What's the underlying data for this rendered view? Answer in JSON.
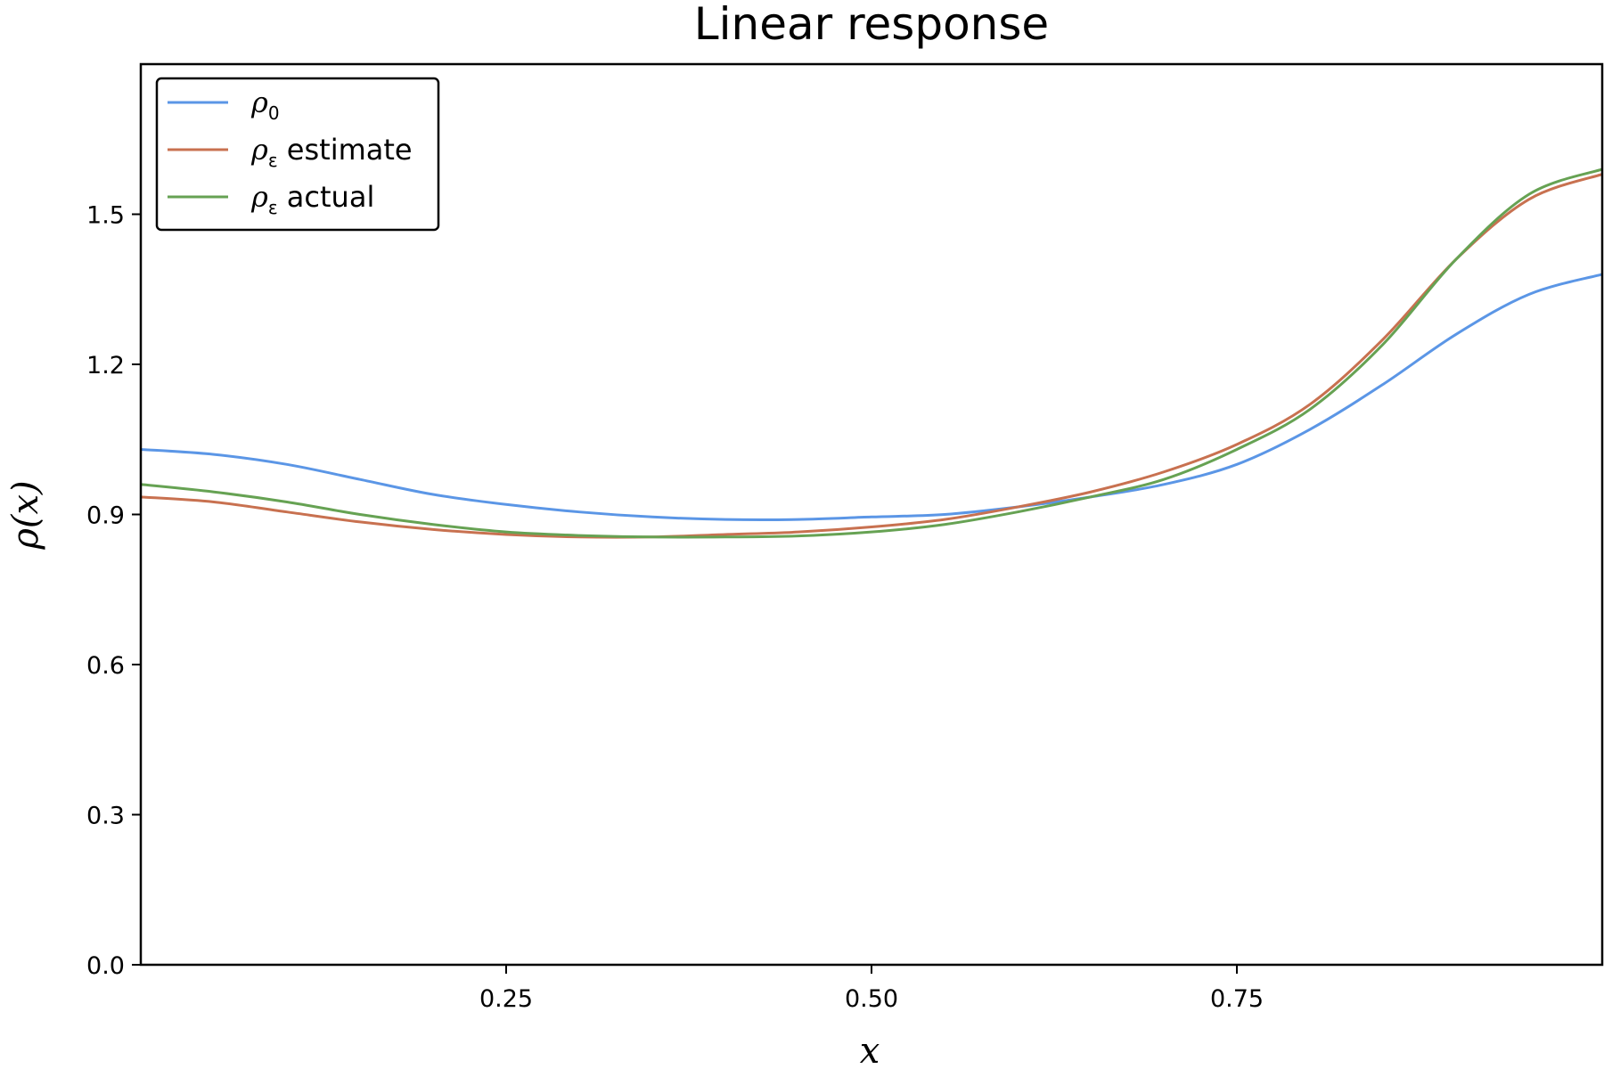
{
  "chart_data": {
    "type": "line",
    "title": "Linear response",
    "xlabel": "x",
    "ylabel": "ρ(x)",
    "xlim": [
      0.0,
      1.0
    ],
    "ylim": [
      0.0,
      1.8
    ],
    "xticks": [
      0.25,
      0.5,
      0.75
    ],
    "xtick_labels": [
      "0.25",
      "0.50",
      "0.75"
    ],
    "yticks": [
      0.0,
      0.3,
      0.6,
      0.9,
      1.2,
      1.5
    ],
    "ytick_labels": [
      "0.0",
      "0.3",
      "0.6",
      "0.9",
      "1.2",
      "1.5"
    ],
    "grid": false,
    "legend_position": "top-left",
    "x": [
      0.0,
      0.05,
      0.1,
      0.15,
      0.2,
      0.25,
      0.3,
      0.35,
      0.4,
      0.45,
      0.5,
      0.55,
      0.6,
      0.65,
      0.7,
      0.75,
      0.8,
      0.85,
      0.9,
      0.95,
      1.0
    ],
    "series": [
      {
        "name": "ρ₀",
        "legend_symbol": "ρ",
        "legend_subscript": "0",
        "legend_suffix": "",
        "color": "#5b96e6",
        "values": [
          1.03,
          1.02,
          1.0,
          0.97,
          0.94,
          0.92,
          0.905,
          0.895,
          0.89,
          0.89,
          0.895,
          0.9,
          0.915,
          0.935,
          0.96,
          1.0,
          1.07,
          1.16,
          1.26,
          1.34,
          1.38
        ]
      },
      {
        "name": "ρε estimate",
        "legend_symbol": "ρ",
        "legend_subscript": "ε",
        "legend_suffix": " estimate",
        "color": "#c87150",
        "values": [
          0.935,
          0.925,
          0.905,
          0.885,
          0.87,
          0.86,
          0.855,
          0.855,
          0.86,
          0.865,
          0.875,
          0.89,
          0.915,
          0.945,
          0.985,
          1.04,
          1.12,
          1.25,
          1.41,
          1.53,
          1.58
        ]
      },
      {
        "name": "ρε actual",
        "legend_symbol": "ρ",
        "legend_subscript": "ε",
        "legend_suffix": " actual",
        "color": "#66a253",
        "values": [
          0.96,
          0.945,
          0.925,
          0.9,
          0.88,
          0.865,
          0.858,
          0.855,
          0.855,
          0.857,
          0.865,
          0.88,
          0.905,
          0.935,
          0.97,
          1.03,
          1.11,
          1.24,
          1.41,
          1.54,
          1.59
        ]
      }
    ]
  }
}
